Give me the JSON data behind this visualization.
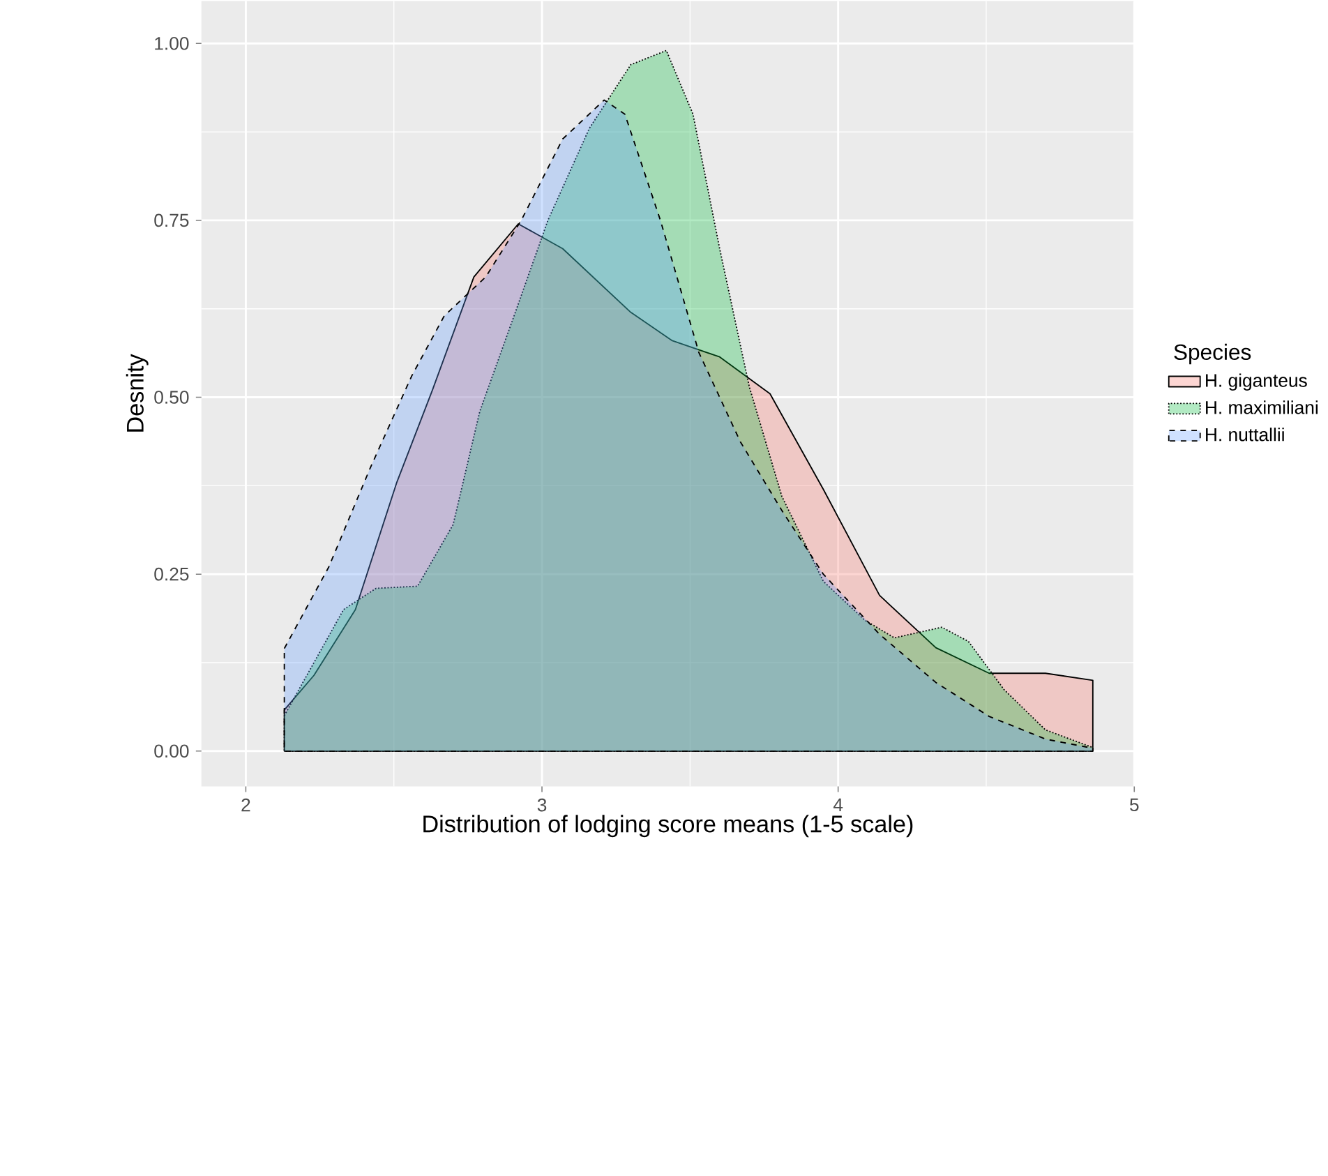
{
  "chart_data": {
    "type": "area",
    "xlabel": "Distribution of lodging score means (1-5 scale)",
    "ylabel": "Desnity",
    "legend_title": "Species",
    "xlim": [
      1.85,
      5.0
    ],
    "ylim": [
      -0.05,
      1.06
    ],
    "xticks": [
      2,
      3,
      4,
      5
    ],
    "yticks": [
      {
        "value": 0,
        "label": "0.00"
      },
      {
        "value": 0.25,
        "label": "0.25"
      },
      {
        "value": 0.5,
        "label": "0.50"
      },
      {
        "value": 0.75,
        "label": "0.75"
      },
      {
        "value": 1,
        "label": "1.00"
      }
    ],
    "grid": true,
    "legend": "right",
    "marker": "none",
    "series": [
      {
        "name": "H. giganteus",
        "color": "#F8766D",
        "line_style": "solid",
        "x": [
          2.13,
          2.23,
          2.37,
          2.51,
          2.63,
          2.77,
          2.92,
          3.07,
          3.3,
          3.44,
          3.6,
          3.77,
          3.95,
          4.14,
          4.33,
          4.51,
          4.7,
          4.86
        ],
        "values": [
          0.058,
          0.107,
          0.2,
          0.38,
          0.51,
          0.67,
          0.745,
          0.71,
          0.62,
          0.58,
          0.557,
          0.505,
          0.37,
          0.22,
          0.146,
          0.11,
          0.11,
          0.1
        ]
      },
      {
        "name": "H. maximiliani",
        "color": "#00BA38",
        "line_style": "dotted",
        "x": [
          2.13,
          2.33,
          2.44,
          2.58,
          2.7,
          2.79,
          2.91,
          3.02,
          3.16,
          3.3,
          3.42,
          3.51,
          3.6,
          3.7,
          3.81,
          3.95,
          4.09,
          4.19,
          4.35,
          4.44,
          4.56,
          4.7,
          4.86
        ],
        "values": [
          0.05,
          0.2,
          0.23,
          0.233,
          0.32,
          0.48,
          0.62,
          0.75,
          0.88,
          0.97,
          0.99,
          0.9,
          0.71,
          0.515,
          0.36,
          0.24,
          0.185,
          0.16,
          0.175,
          0.155,
          0.087,
          0.03,
          0.005
        ]
      },
      {
        "name": "H. nuttallii",
        "color": "#619CFF",
        "line_style": "dashed",
        "x": [
          2.13,
          2.28,
          2.42,
          2.56,
          2.67,
          2.81,
          2.93,
          3.07,
          3.21,
          3.28,
          3.4,
          3.53,
          3.67,
          3.81,
          3.95,
          4.14,
          4.33,
          4.51,
          4.7,
          4.86
        ],
        "values": [
          0.145,
          0.26,
          0.4,
          0.53,
          0.615,
          0.67,
          0.75,
          0.865,
          0.92,
          0.9,
          0.75,
          0.563,
          0.437,
          0.34,
          0.25,
          0.165,
          0.097,
          0.049,
          0.017,
          0.004
        ]
      }
    ]
  }
}
